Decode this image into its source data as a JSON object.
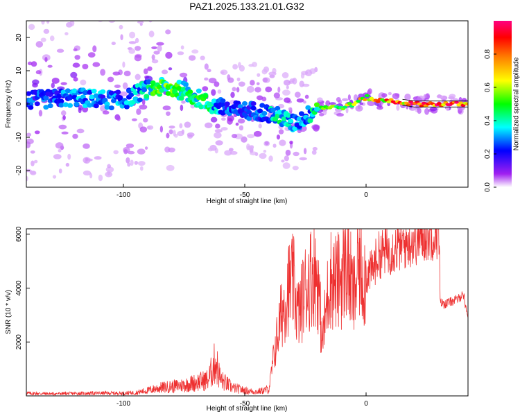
{
  "figure_title": "PAZ1.2025.133.21.01.G32",
  "chart_data": [
    {
      "type": "heatmap",
      "xlabel": "Height of straight line (km)",
      "ylabel": "Frequency (Hz)",
      "xlim": [
        -140,
        42
      ],
      "ylim": [
        -25,
        25
      ],
      "xticks": [
        -100,
        -50,
        0
      ],
      "yticks": [
        -20,
        -10,
        0,
        10,
        20
      ],
      "colorbar": {
        "label": "Normalized spectral amplitude",
        "range": [
          0,
          1
        ],
        "ticks": [
          0.0,
          0.2,
          0.4,
          0.6,
          0.8
        ],
        "colors": [
          "#ffffff",
          "#a020f0",
          "#0000ff",
          "#00ffff",
          "#00ff00",
          "#ffff00",
          "#ff8000",
          "#ff0000",
          "#ff0080"
        ]
      },
      "ridge": {
        "x": [
          -140,
          -120,
          -100,
          -92,
          -85,
          -75,
          -65,
          -55,
          -45,
          -35,
          -30,
          -25,
          -20,
          -10,
          -5,
          0,
          5,
          10,
          20,
          30,
          42
        ],
        "frequency": [
          1,
          2,
          1,
          4,
          5,
          4,
          0,
          -2,
          -2,
          -4,
          -6,
          -4,
          -1,
          -1,
          0,
          2,
          1,
          1,
          0,
          0,
          0
        ],
        "amplitude": [
          0.3,
          0.35,
          0.35,
          0.4,
          0.55,
          0.55,
          0.45,
          0.3,
          0.3,
          0.45,
          0.35,
          0.35,
          0.5,
          0.6,
          0.7,
          0.7,
          0.8,
          0.85,
          0.9,
          0.95,
          0.95
        ]
      },
      "grid": false
    },
    {
      "type": "line",
      "xlabel": "Height of straight line (km)",
      "ylabel": "SNR (10 * v/v)",
      "xlim": [
        -140,
        42
      ],
      "ylim": [
        0,
        6200
      ],
      "xticks": [
        -100,
        -50,
        0
      ],
      "yticks": [
        2000,
        4000,
        6000
      ],
      "color": "#ee3030",
      "grid": false,
      "series": [
        {
          "x": [
            -140,
            -130,
            -120,
            -110,
            -100,
            -95,
            -90,
            -85,
            -80,
            -75,
            -70,
            -65,
            -62,
            -60,
            -55,
            -50,
            -45,
            -40,
            -38,
            -35,
            -32,
            -30,
            -28,
            -25,
            -22,
            -20,
            -18,
            -15,
            -12,
            -10,
            -8,
            -5,
            -3,
            -1,
            2,
            5,
            8,
            10,
            15,
            20,
            25,
            30,
            30.5,
            32,
            35,
            38,
            40,
            42
          ],
          "y": [
            100,
            80,
            90,
            100,
            100,
            120,
            200,
            300,
            350,
            400,
            500,
            600,
            1300,
            600,
            300,
            200,
            150,
            250,
            1500,
            3000,
            4000,
            4200,
            3000,
            4000,
            4600,
            4400,
            2000,
            4400,
            4200,
            4400,
            5000,
            3600,
            5000,
            4400,
            4600,
            5200,
            5400,
            5400,
            5600,
            5800,
            6000,
            6100,
            3500,
            3400,
            3500,
            3600,
            3800,
            2900
          ]
        }
      ]
    }
  ]
}
